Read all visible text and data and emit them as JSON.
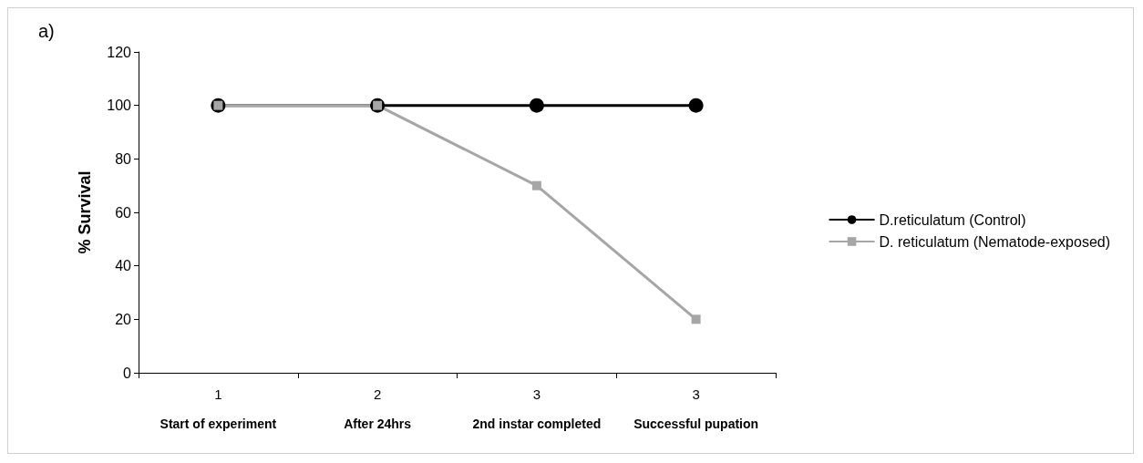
{
  "chart_data": {
    "type": "line",
    "title": "a)",
    "ylabel": "% Survival",
    "categories": [
      "1\nStart of experiment",
      "2\nAfter 24hrs",
      "3\n2nd instar completed",
      "3\nSuccessful pupation"
    ],
    "series": [
      {
        "name": "D.reticulatum (Control)",
        "color": "#000000",
        "marker": "circle",
        "values": [
          100,
          100,
          100,
          100
        ]
      },
      {
        "name": "D. reticulatum (Nematode-exposed)",
        "color": "#a6a6a6",
        "marker": "square",
        "values": [
          100,
          100,
          70,
          20
        ]
      }
    ],
    "ylim": [
      0,
      120
    ],
    "yticks": [
      0,
      20,
      40,
      60,
      80,
      100,
      120
    ],
    "grid": false,
    "legend": "right",
    "line_style": "solid"
  }
}
